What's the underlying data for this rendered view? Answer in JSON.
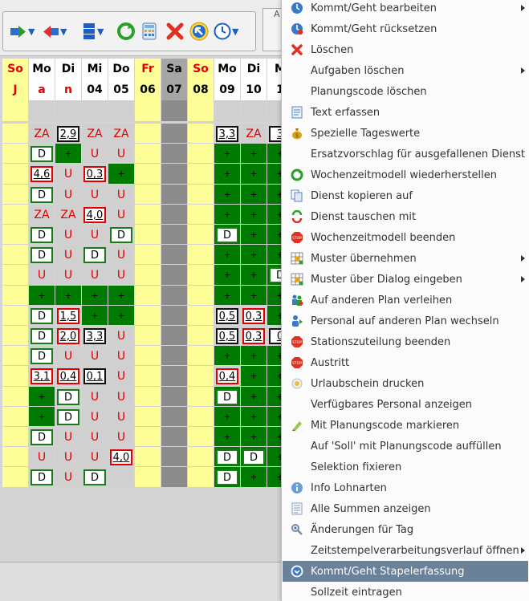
{
  "toolbar": {
    "frame_label": "A",
    "buttons": [
      {
        "name": "forward-arrow-icon"
      },
      {
        "name": "back-arrow-icon"
      },
      {
        "name": "layout-icon"
      },
      {
        "name": "refresh-icon"
      },
      {
        "name": "calculator-icon"
      },
      {
        "name": "delete-x-icon"
      },
      {
        "name": "cursor-arrow-icon"
      },
      {
        "name": "clock-icon"
      }
    ]
  },
  "grid": {
    "day_names": [
      "So",
      "Mo",
      "Di",
      "Mi",
      "Do",
      "Fr",
      "Sa",
      "So",
      "Mo",
      "Di",
      "M"
    ],
    "day_numbers": [
      "J",
      "a",
      "n",
      "04",
      "05",
      "06",
      "07",
      "08",
      "09",
      "10",
      "1"
    ],
    "rows": [
      [
        "",
        "ZA",
        "2,9",
        "ZA",
        "ZA",
        "",
        "",
        "",
        "3,3",
        "ZA",
        "3"
      ],
      [
        "",
        "D",
        "+",
        "U",
        "U",
        "",
        "",
        "",
        "+",
        "+",
        "+"
      ],
      [
        "",
        "4,6",
        "U",
        "0,3",
        "+",
        "",
        "",
        "",
        "+",
        "+",
        "+"
      ],
      [
        "",
        "D",
        "U",
        "U",
        "U",
        "",
        "",
        "",
        "+",
        "+",
        "+"
      ],
      [
        "",
        "ZA",
        "ZA",
        "4,0",
        "U",
        "",
        "",
        "",
        "+",
        "+",
        "+"
      ],
      [
        "",
        "D",
        "U",
        "U",
        "D",
        "",
        "",
        "",
        "D",
        "+",
        "+"
      ],
      [
        "",
        "D",
        "U",
        "D",
        "U",
        "",
        "",
        "",
        "+",
        "+",
        "+"
      ],
      [
        "",
        "U",
        "U",
        "U",
        "U",
        "",
        "",
        "",
        "+",
        "+",
        "D"
      ],
      [
        "",
        "+",
        "+",
        "+",
        "+",
        "",
        "",
        "",
        "+",
        "+",
        "+"
      ],
      [
        "",
        "D",
        "1,5",
        "+",
        "+",
        "",
        "",
        "",
        "0,5",
        "0,3",
        "+"
      ],
      [
        "",
        "D",
        "2,0",
        "3,3",
        "U",
        "",
        "",
        "",
        "0,5",
        "0,3",
        "0"
      ],
      [
        "",
        "D",
        "U",
        "U",
        "U",
        "",
        "",
        "",
        "+",
        "+",
        "+"
      ],
      [
        "",
        "3,1",
        "0,4",
        "0,1",
        "U",
        "",
        "",
        "",
        "0,4",
        "+",
        "+"
      ],
      [
        "",
        "+",
        "D",
        "U",
        "U",
        "",
        "",
        "",
        "D",
        "+",
        "+"
      ],
      [
        "",
        "+",
        "D",
        "U",
        "U",
        "",
        "",
        "",
        "+",
        "+",
        "+"
      ],
      [
        "",
        "D",
        "U",
        "U",
        "U",
        "",
        "",
        "",
        "+",
        "+",
        "+"
      ],
      [
        "",
        "U",
        "U",
        "U",
        "4,0",
        "",
        "",
        "",
        "D",
        "D",
        "+"
      ],
      [
        "",
        "D",
        "U",
        "D",
        "",
        "",
        "",
        "",
        "D",
        "+",
        "+"
      ]
    ]
  },
  "menu": {
    "items": [
      {
        "label": "Kommt/Geht bearbeiten",
        "icon": "clock-edit-icon",
        "submenu": true
      },
      {
        "label": "Kommt/Geht rücksetzen",
        "icon": "clock-reset-icon",
        "submenu": false
      },
      {
        "label": "Löschen",
        "icon": "delete-x-icon",
        "submenu": false
      },
      {
        "label": "Aufgaben löschen",
        "icon": "",
        "submenu": true
      },
      {
        "label": "Planungscode löschen",
        "icon": "",
        "submenu": false
      },
      {
        "label": "Text erfassen",
        "icon": "text-note-icon",
        "submenu": false
      },
      {
        "label": "Spezielle Tageswerte",
        "icon": "money-bag-icon",
        "submenu": false
      },
      {
        "label": "Ersatzvorschlag für ausgefallenen Dienst",
        "icon": "",
        "submenu": false
      },
      {
        "label": "Wochenzeitmodell wiederherstellen",
        "icon": "restore-icon",
        "submenu": false
      },
      {
        "label": "Dienst kopieren auf",
        "icon": "copy-icon",
        "submenu": false
      },
      {
        "label": "Dienst tauschen mit",
        "icon": "swap-icon",
        "submenu": false
      },
      {
        "label": "Wochenzeitmodell beenden",
        "icon": "stop-icon",
        "submenu": false
      },
      {
        "label": "Muster übernehmen",
        "icon": "grid-pattern-icon",
        "submenu": true
      },
      {
        "label": "Muster über Dialog eingeben",
        "icon": "grid-pattern-icon",
        "submenu": true
      },
      {
        "label": "Auf anderen Plan verleihen",
        "icon": "people-lend-icon",
        "submenu": false
      },
      {
        "label": "Personal auf anderen Plan wechseln",
        "icon": "person-move-icon",
        "submenu": false
      },
      {
        "label": "Stationszuteilung beenden",
        "icon": "stop-icon",
        "submenu": false
      },
      {
        "label": "Austritt",
        "icon": "stop-icon",
        "submenu": false
      },
      {
        "label": "Urlaubschein drucken",
        "icon": "print-icon",
        "submenu": false
      },
      {
        "label": "Verfügbares Personal anzeigen",
        "icon": "",
        "submenu": false
      },
      {
        "label": "Mit Planungscode markieren",
        "icon": "marker-icon",
        "submenu": false
      },
      {
        "label": "Auf 'Soll' mit Planungscode auffüllen",
        "icon": "",
        "submenu": false
      },
      {
        "label": "Selektion fixieren",
        "icon": "",
        "submenu": false
      },
      {
        "label": "Info Lohnarten",
        "icon": "info-icon",
        "submenu": false
      },
      {
        "label": "Alle Summen anzeigen",
        "icon": "list-icon",
        "submenu": false
      },
      {
        "label": "Änderungen für Tag",
        "icon": "changes-icon",
        "submenu": false
      },
      {
        "label": "Zeitstempelverarbeitungsverlauf öffnen",
        "icon": "",
        "submenu": true
      },
      {
        "label": "Kommt/Geht Stapelerfassung",
        "icon": "clock-batch-icon",
        "submenu": false
      },
      {
        "label": "Sollzeit eintragen",
        "icon": "",
        "submenu": false
      }
    ]
  }
}
